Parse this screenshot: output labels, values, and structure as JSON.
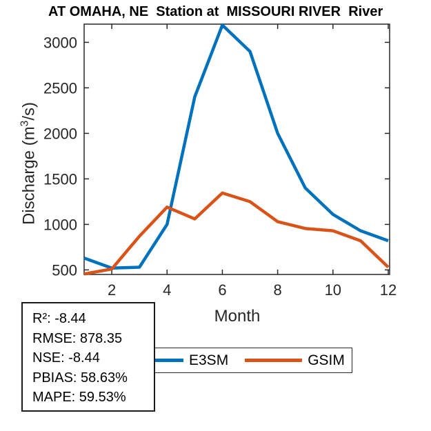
{
  "title": "AT OMAHA, NE  Station at  MISSOURI RIVER  River",
  "chart_data": {
    "type": "line",
    "title": "AT OMAHA, NE  Station at  MISSOURI RIVER  River",
    "xlabel": "Month",
    "ylabel": "Discharge (m3/s)",
    "ylabel_parts": {
      "prefix": "Discharge (m",
      "sup": "3",
      "suffix": "/s)"
    },
    "x": [
      1,
      2,
      3,
      4,
      5,
      6,
      7,
      8,
      9,
      10,
      11,
      12
    ],
    "xticks": [
      2,
      4,
      6,
      8,
      10,
      12
    ],
    "yticks": [
      500,
      1000,
      1500,
      2000,
      2500,
      3000
    ],
    "xlim": [
      1,
      12.05
    ],
    "ylim": [
      450,
      3200
    ],
    "grid": false,
    "legend_position": "below-horizontal",
    "series": [
      {
        "name": "E3SM",
        "color": "#0072BD",
        "values": [
          630,
          520,
          530,
          1000,
          2400,
          3190,
          2900,
          2000,
          1400,
          1110,
          930,
          820
        ]
      },
      {
        "name": "GSIM",
        "color": "#D95319",
        "values": [
          455,
          510,
          870,
          1190,
          1060,
          1345,
          1250,
          1030,
          955,
          930,
          820,
          530
        ]
      }
    ]
  },
  "legend": {
    "items": [
      {
        "label": "E3SM",
        "color": "#0072BD"
      },
      {
        "label": "GSIM",
        "color": "#D95319"
      }
    ]
  },
  "stats_box": {
    "lines": [
      "R²: -8.44",
      "RMSE: 878.35",
      "NSE: -8.44",
      "PBIAS: 58.63%",
      "MAPE: 59.53%"
    ]
  },
  "colors": {
    "axis": "#262626",
    "tick_label": "#262626",
    "title": "#000000",
    "e3sm_blue": "#0072BD",
    "gsim_orange": "#D95319"
  }
}
